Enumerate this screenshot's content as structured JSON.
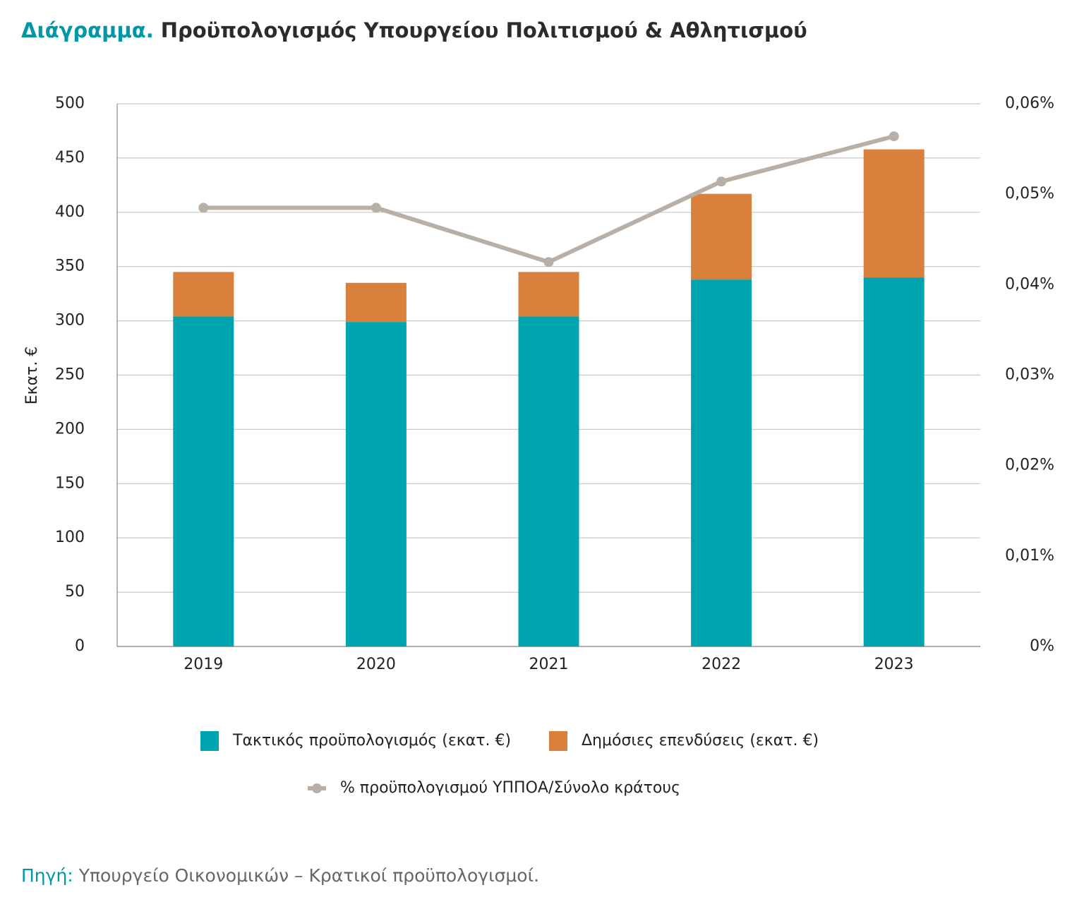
{
  "chart_data": {
    "type": "bar_line",
    "title_prefix": "Διάγραμμα.",
    "title": "Προϋπολογισμός Υπουργείου Πολιτισμού & Αθλητισμού",
    "ylabel": "Εκατ. €",
    "source_label": "Πηγή:",
    "source": "Υπουργείο Οικονομικών – Κρατικοί προϋπολογισμοί.",
    "categories": [
      "2019",
      "2020",
      "2021",
      "2022",
      "2023"
    ],
    "series": [
      {
        "name": "Τακτικός προϋπολογισμός (εκατ. €)",
        "color": "#00a3b0",
        "values": [
          304,
          299,
          304,
          338,
          340
        ]
      },
      {
        "name": "Δημόσιες επενδύσεις (εκατ. €)",
        "color": "#d9813c",
        "values": [
          41,
          36,
          41,
          79,
          118
        ]
      },
      {
        "name": "% προϋπολογισμού ΥΠΠΟΑ/Σύνολο κράτους",
        "color": "#b8b0a6",
        "axis": "y2",
        "values": [
          0.0485,
          0.0485,
          0.0425,
          0.0514,
          0.0564
        ]
      }
    ],
    "ylim": [
      0,
      500
    ],
    "yticks": [
      0,
      50,
      100,
      150,
      200,
      250,
      300,
      350,
      400,
      450,
      500
    ],
    "y2lim": [
      0,
      0.06
    ],
    "y2ticks": [
      {
        "value": 0,
        "label": "0%"
      },
      {
        "value": 0.01,
        "label": "0,01%"
      },
      {
        "value": 0.02,
        "label": "0,02%"
      },
      {
        "value": 0.03,
        "label": "0,03%"
      },
      {
        "value": 0.04,
        "label": "0,04%"
      },
      {
        "value": 0.05,
        "label": "0,05%"
      },
      {
        "value": 0.06,
        "label": "0,06%"
      }
    ],
    "grid": true
  }
}
